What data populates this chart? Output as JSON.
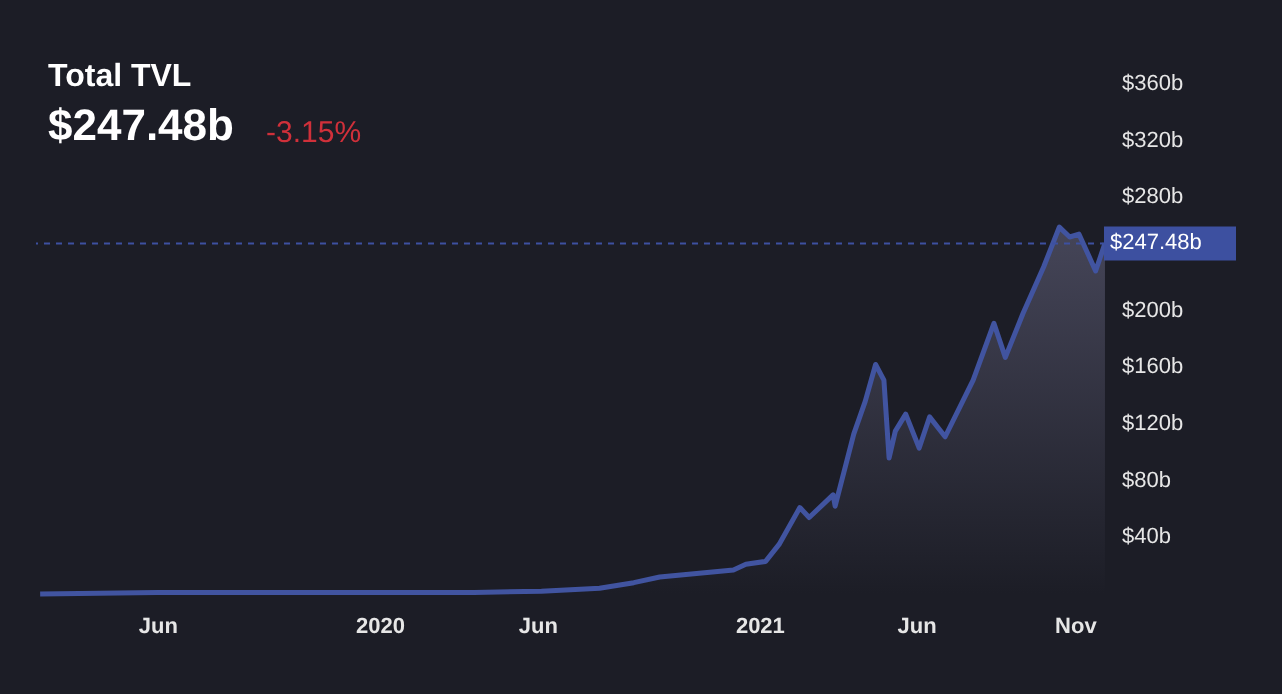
{
  "chart_data": {
    "type": "area",
    "title": "Total TVL",
    "subtitle": "$247.48b",
    "annotations": [
      "-3.15%"
    ],
    "x": [
      "2019-02-08",
      "2019-06-01",
      "2019-10-01",
      "2020-01-01",
      "2020-04-01",
      "2020-06-05",
      "2020-07-31",
      "2020-09-02",
      "2020-09-27",
      "2020-12-07",
      "2020-12-19",
      "2021-01-07",
      "2021-01-20",
      "2021-02-09",
      "2021-02-18",
      "2021-03-13",
      "2021-03-15",
      "2021-04-02",
      "2021-04-13",
      "2021-04-23",
      "2021-05-01",
      "2021-05-06",
      "2021-05-12",
      "2021-05-22",
      "2021-06-04",
      "2021-06-14",
      "2021-06-29",
      "2021-07-26",
      "2021-08-15",
      "2021-08-26",
      "2021-09-12",
      "2021-10-02",
      "2021-10-17",
      "2021-10-27",
      "2021-11-05",
      "2021-11-21",
      "2021-11-30"
    ],
    "series": [
      {
        "color": "#4154a0",
        "values": [
          0,
          1,
          1,
          1,
          1,
          2,
          4,
          8,
          12,
          17,
          21,
          23,
          35,
          61,
          54,
          70,
          62,
          113,
          136,
          162,
          151,
          96,
          115,
          127,
          103,
          125,
          111,
          151,
          191,
          167,
          198,
          231,
          259,
          252,
          254,
          228,
          247.48
        ]
      }
    ],
    "xlim": [
      "2019-02-04",
      "2021-12-01"
    ],
    "xticks": [
      {
        "value": "2019-06-01",
        "label": "Jun"
      },
      {
        "value": "2020-01-01",
        "label": "2020"
      },
      {
        "value": "2020-06-01",
        "label": "Jun"
      },
      {
        "value": "2021-01-01",
        "label": "2021"
      },
      {
        "value": "2021-06-01",
        "label": "Jun"
      },
      {
        "value": "2021-11-01",
        "label": "Nov"
      }
    ],
    "ylim": [
      0,
      360
    ],
    "yticks": [
      {
        "value": 40,
        "label": "$40b"
      },
      {
        "value": 80,
        "label": "$80b"
      },
      {
        "value": 120,
        "label": "$120b"
      },
      {
        "value": 160,
        "label": "$160b"
      },
      {
        "value": 200,
        "label": "$200b"
      },
      {
        "value": 280,
        "label": "$280b"
      },
      {
        "value": 320,
        "label": "$320b"
      },
      {
        "value": 360,
        "label": "$360b"
      }
    ],
    "ref_lines": [
      {
        "axis": "y",
        "value": 247.48,
        "label": "$247.48b",
        "color": "#3d50a0",
        "line_style": "dashed"
      }
    ],
    "grid": false
  }
}
